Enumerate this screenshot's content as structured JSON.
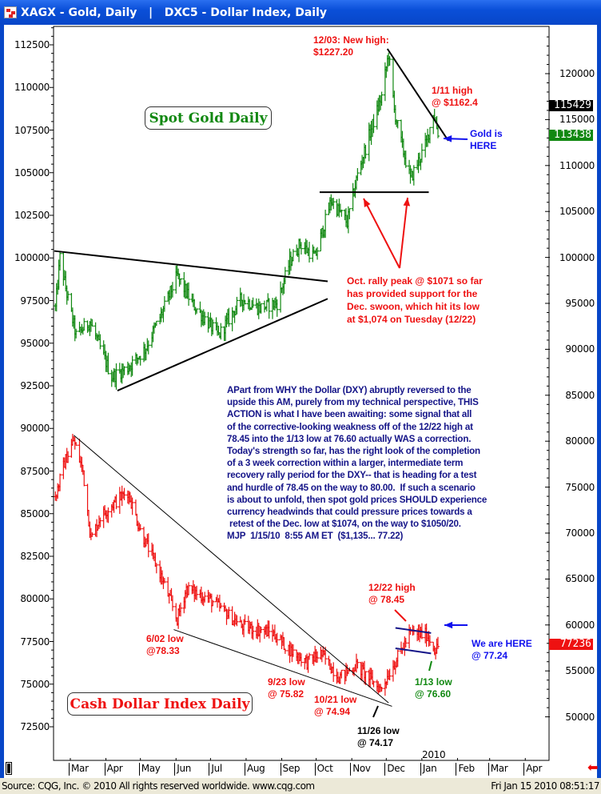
{
  "window": {
    "title": "XAGX - Gold, Daily   |   DXC5 - Dollar Index, Daily"
  },
  "status": {
    "source": "Source: CQG, Inc. © 2010 All rights reserved worldwide.  www.cqg.com",
    "timestamp": "Fri Jan 15 2010 08:51:17"
  },
  "chart_data": {
    "type": "bar",
    "x_axis": {
      "months": [
        "Mar",
        "Apr",
        "May",
        "Jun",
        "Jul",
        "Aug",
        "Sep",
        "Oct",
        "Nov",
        "Dec",
        "Jan",
        "Feb",
        "Mar",
        "Apr"
      ],
      "year_label": "2010",
      "range": [
        "2009-02-15",
        "2010-04-30"
      ]
    },
    "left_axis": {
      "ticks": [
        72500,
        75000,
        77500,
        80000,
        82500,
        85000,
        87500,
        90000,
        92500,
        95000,
        97500,
        100000,
        102500,
        105000,
        107500,
        110000,
        112500
      ],
      "range": [
        71400,
        113500
      ]
    },
    "right_axis": {
      "ticks": [
        50000,
        55000,
        60000,
        65000,
        70000,
        75000,
        80000,
        85000,
        90000,
        95000,
        100000,
        105000,
        110000,
        115000,
        120000
      ],
      "range": [
        48700,
        124700
      ]
    },
    "series": [
      {
        "name": "XAGX - Gold, Daily",
        "axis": "right",
        "scale": 100,
        "color": "#118811",
        "points": [
          [
            "2009-02-16",
            945
          ],
          [
            "2009-02-20",
            1000
          ],
          [
            "2009-02-26",
            960
          ],
          [
            "2009-03-06",
            915
          ],
          [
            "2009-03-18",
            930
          ],
          [
            "2009-04-06",
            870
          ],
          [
            "2009-04-20",
            880
          ],
          [
            "2009-05-05",
            900
          ],
          [
            "2009-05-20",
            940
          ],
          [
            "2009-06-02",
            980
          ],
          [
            "2009-06-15",
            950
          ],
          [
            "2009-07-08",
            915
          ],
          [
            "2009-07-28",
            955
          ],
          [
            "2009-08-12",
            945
          ],
          [
            "2009-08-28",
            950
          ],
          [
            "2009-09-08",
            995
          ],
          [
            "2009-09-17",
            1015
          ],
          [
            "2009-09-30",
            1000
          ],
          [
            "2009-10-14",
            1062
          ],
          [
            "2009-10-28",
            1038
          ],
          [
            "2009-11-06",
            1090
          ],
          [
            "2009-11-18",
            1140
          ],
          [
            "2009-11-27",
            1175
          ],
          [
            "2009-12-03",
            1222
          ],
          [
            "2009-12-08",
            1160
          ],
          [
            "2009-12-15",
            1120
          ],
          [
            "2009-12-22",
            1085
          ],
          [
            "2010-01-05",
            1125
          ],
          [
            "2010-01-11",
            1158
          ],
          [
            "2010-01-15",
            1136
          ]
        ]
      },
      {
        "name": "DXC5 - Dollar Index, Daily",
        "axis": "left",
        "scale": 1000,
        "color": "#ee1111",
        "points": [
          [
            "2009-02-16",
            86.0
          ],
          [
            "2009-02-24",
            88.0
          ],
          [
            "2009-03-04",
            89.3
          ],
          [
            "2009-03-12",
            87.5
          ],
          [
            "2009-03-19",
            83.5
          ],
          [
            "2009-03-27",
            84.8
          ],
          [
            "2009-04-06",
            85.5
          ],
          [
            "2009-04-20",
            86.3
          ],
          [
            "2009-05-01",
            84.0
          ],
          [
            "2009-05-18",
            81.5
          ],
          [
            "2009-06-02",
            78.8
          ],
          [
            "2009-06-10",
            80.6
          ],
          [
            "2009-06-30",
            80.0
          ],
          [
            "2009-07-14",
            79.2
          ],
          [
            "2009-07-28",
            78.4
          ],
          [
            "2009-08-24",
            78.0
          ],
          [
            "2009-09-08",
            77.0
          ],
          [
            "2009-09-23",
            76.3
          ],
          [
            "2009-10-05",
            76.8
          ],
          [
            "2009-10-21",
            75.4
          ],
          [
            "2009-11-05",
            76.1
          ],
          [
            "2009-11-26",
            74.7
          ],
          [
            "2009-12-08",
            76.2
          ],
          [
            "2009-12-22",
            78.0
          ],
          [
            "2010-01-05",
            77.9
          ],
          [
            "2010-01-13",
            77.0
          ],
          [
            "2010-01-15",
            77.2
          ]
        ]
      }
    ],
    "last_values": [
      {
        "value": "115429",
        "color": "#000000"
      },
      {
        "value": "113438",
        "color": "#118811"
      },
      {
        "value": "77236",
        "color": "#ee1111"
      }
    ],
    "trendlines": [
      {
        "axis": "right",
        "from": [
          "2009-02-15",
          1007
        ],
        "to": [
          "2009-10-11",
          974
        ],
        "color": "#000000",
        "width": 2
      },
      {
        "axis": "right",
        "from": [
          "2009-04-11",
          855
        ],
        "to": [
          "2009-10-11",
          955
        ],
        "color": "#000000",
        "width": 2
      },
      {
        "axis": "right",
        "from": [
          "2009-10-04",
          1071
        ],
        "to": [
          "2010-01-07",
          1071
        ],
        "color": "#000000",
        "width": 2
      },
      {
        "axis": "right",
        "from": [
          "2009-12-02",
          1227
        ],
        "to": [
          "2010-01-24",
          1127
        ],
        "color": "#000000",
        "width": 2
      },
      {
        "axis": "left",
        "from": [
          "2009-03-04",
          89.6
        ],
        "to": [
          "2009-12-03",
          73.9
        ],
        "color": "#000000",
        "width": 1
      },
      {
        "axis": "left",
        "from": [
          "2009-05-30",
          78.2
        ],
        "to": [
          "2009-12-06",
          73.7
        ],
        "color": "#000000",
        "width": 1
      },
      {
        "axis": "left",
        "from": [
          "2009-12-09",
          78.3
        ],
        "to": [
          "2010-01-09",
          78.0
        ],
        "color": "#141488",
        "width": 2
      },
      {
        "axis": "left",
        "from": [
          "2009-12-09",
          77.1
        ],
        "to": [
          "2010-01-09",
          76.8
        ],
        "color": "#141488",
        "width": 2
      }
    ],
    "annotations": {
      "gold_title": "Spot Gold Daily",
      "dollar_title": "Cash Dollar Index Daily",
      "new_high": [
        "12/03: New high:",
        "$1227.20"
      ],
      "jan11_high": [
        "1/11 high",
        "@ $1162.4"
      ],
      "gold_here": [
        "Gold is",
        "HERE"
      ],
      "oct_support": [
        "Oct. rally peak @ $1071 so far",
        "has provided support for the",
        "Dec. swoon, which hit its low",
        "at $1,074 on Tuesday (12/22)"
      ],
      "commentary": "APart from WHY the Dollar (DXY) abruptly reversed to the\nupside this AM, purely from my technical perspective, THIS\nACTION is what I have been awaiting: some signal that all\nof the corrective-looking weakness off of the 12/22 high at\n78.45 into the 1/13 low at 76.60 actually WAS a correction.\nToday's strength so far, has the right look of the completion\nof a 3 week correction within a larger, intermediate term\nrecovery rally period for the DXY-- that is heading for a test\nand hurdle of 78.45 on the way to 80.00.  If such a scenario\nis about to unfold, then spot gold prices SHOULD experience\ncurrency headwinds that could pressure prices towards a\n retest of the Dec. low at $1074, on the way to $1050/20.\nMJP  1/15/10  8:55 AM ET  ($1,135... 77.22)",
      "jun02_low": [
        "6/02 low",
        "@78.33"
      ],
      "sep23_low": [
        "9/23 low",
        "@ 75.82"
      ],
      "oct21_low": [
        "10/21 low",
        "@ 74.94"
      ],
      "nov26_low": [
        "11/26 low",
        "@ 74.17"
      ],
      "dec22_high": [
        "12/22 high",
        "@ 78.45"
      ],
      "jan13_low": [
        "1/13 low",
        "@ 76.60"
      ],
      "we_are_here": [
        "We are HERE",
        "@ 77.24"
      ]
    }
  }
}
